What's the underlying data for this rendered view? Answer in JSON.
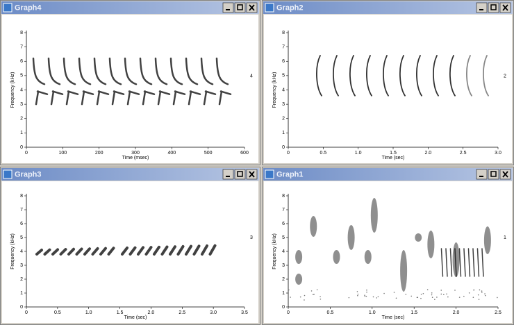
{
  "windows": [
    {
      "title": "Graph4",
      "y_label": "Frequency (kHz)",
      "x_label": "Time (msec)",
      "side_label": "4",
      "yticks": [
        "0",
        "1",
        "2",
        "3",
        "4",
        "5",
        "6",
        "7",
        "8"
      ],
      "xticks": [
        "0",
        "100",
        "200",
        "300",
        "400",
        "500",
        "600"
      ]
    },
    {
      "title": "Graph2",
      "y_label": "Frequency (kHz)",
      "x_label": "Time (sec)",
      "side_label": "2",
      "yticks": [
        "0",
        "1",
        "2",
        "3",
        "4",
        "5",
        "6",
        "7",
        "8"
      ],
      "xticks": [
        "0",
        "0.5",
        "1.0",
        "1.5",
        "2.0",
        "2.5",
        "3.0"
      ]
    },
    {
      "title": "Graph3",
      "y_label": "Frequency (kHz)",
      "x_label": "Time (sec)",
      "side_label": "3",
      "yticks": [
        "0",
        "1",
        "2",
        "3",
        "4",
        "5",
        "6",
        "7",
        "8"
      ],
      "xticks": [
        "0",
        "0.5",
        "1.0",
        "1.5",
        "2.0",
        "2.5",
        "3.0",
        "3.5"
      ]
    },
    {
      "title": "Graph1",
      "y_label": "Frequency (kHz)",
      "x_label": "Time (sec)",
      "side_label": "1",
      "yticks": [
        "0",
        "1",
        "2",
        "3",
        "4",
        "5",
        "6",
        "7",
        "8"
      ],
      "xticks": [
        "0",
        "0.5",
        "1.0",
        "1.5",
        "2.0",
        "2.5"
      ]
    }
  ]
}
